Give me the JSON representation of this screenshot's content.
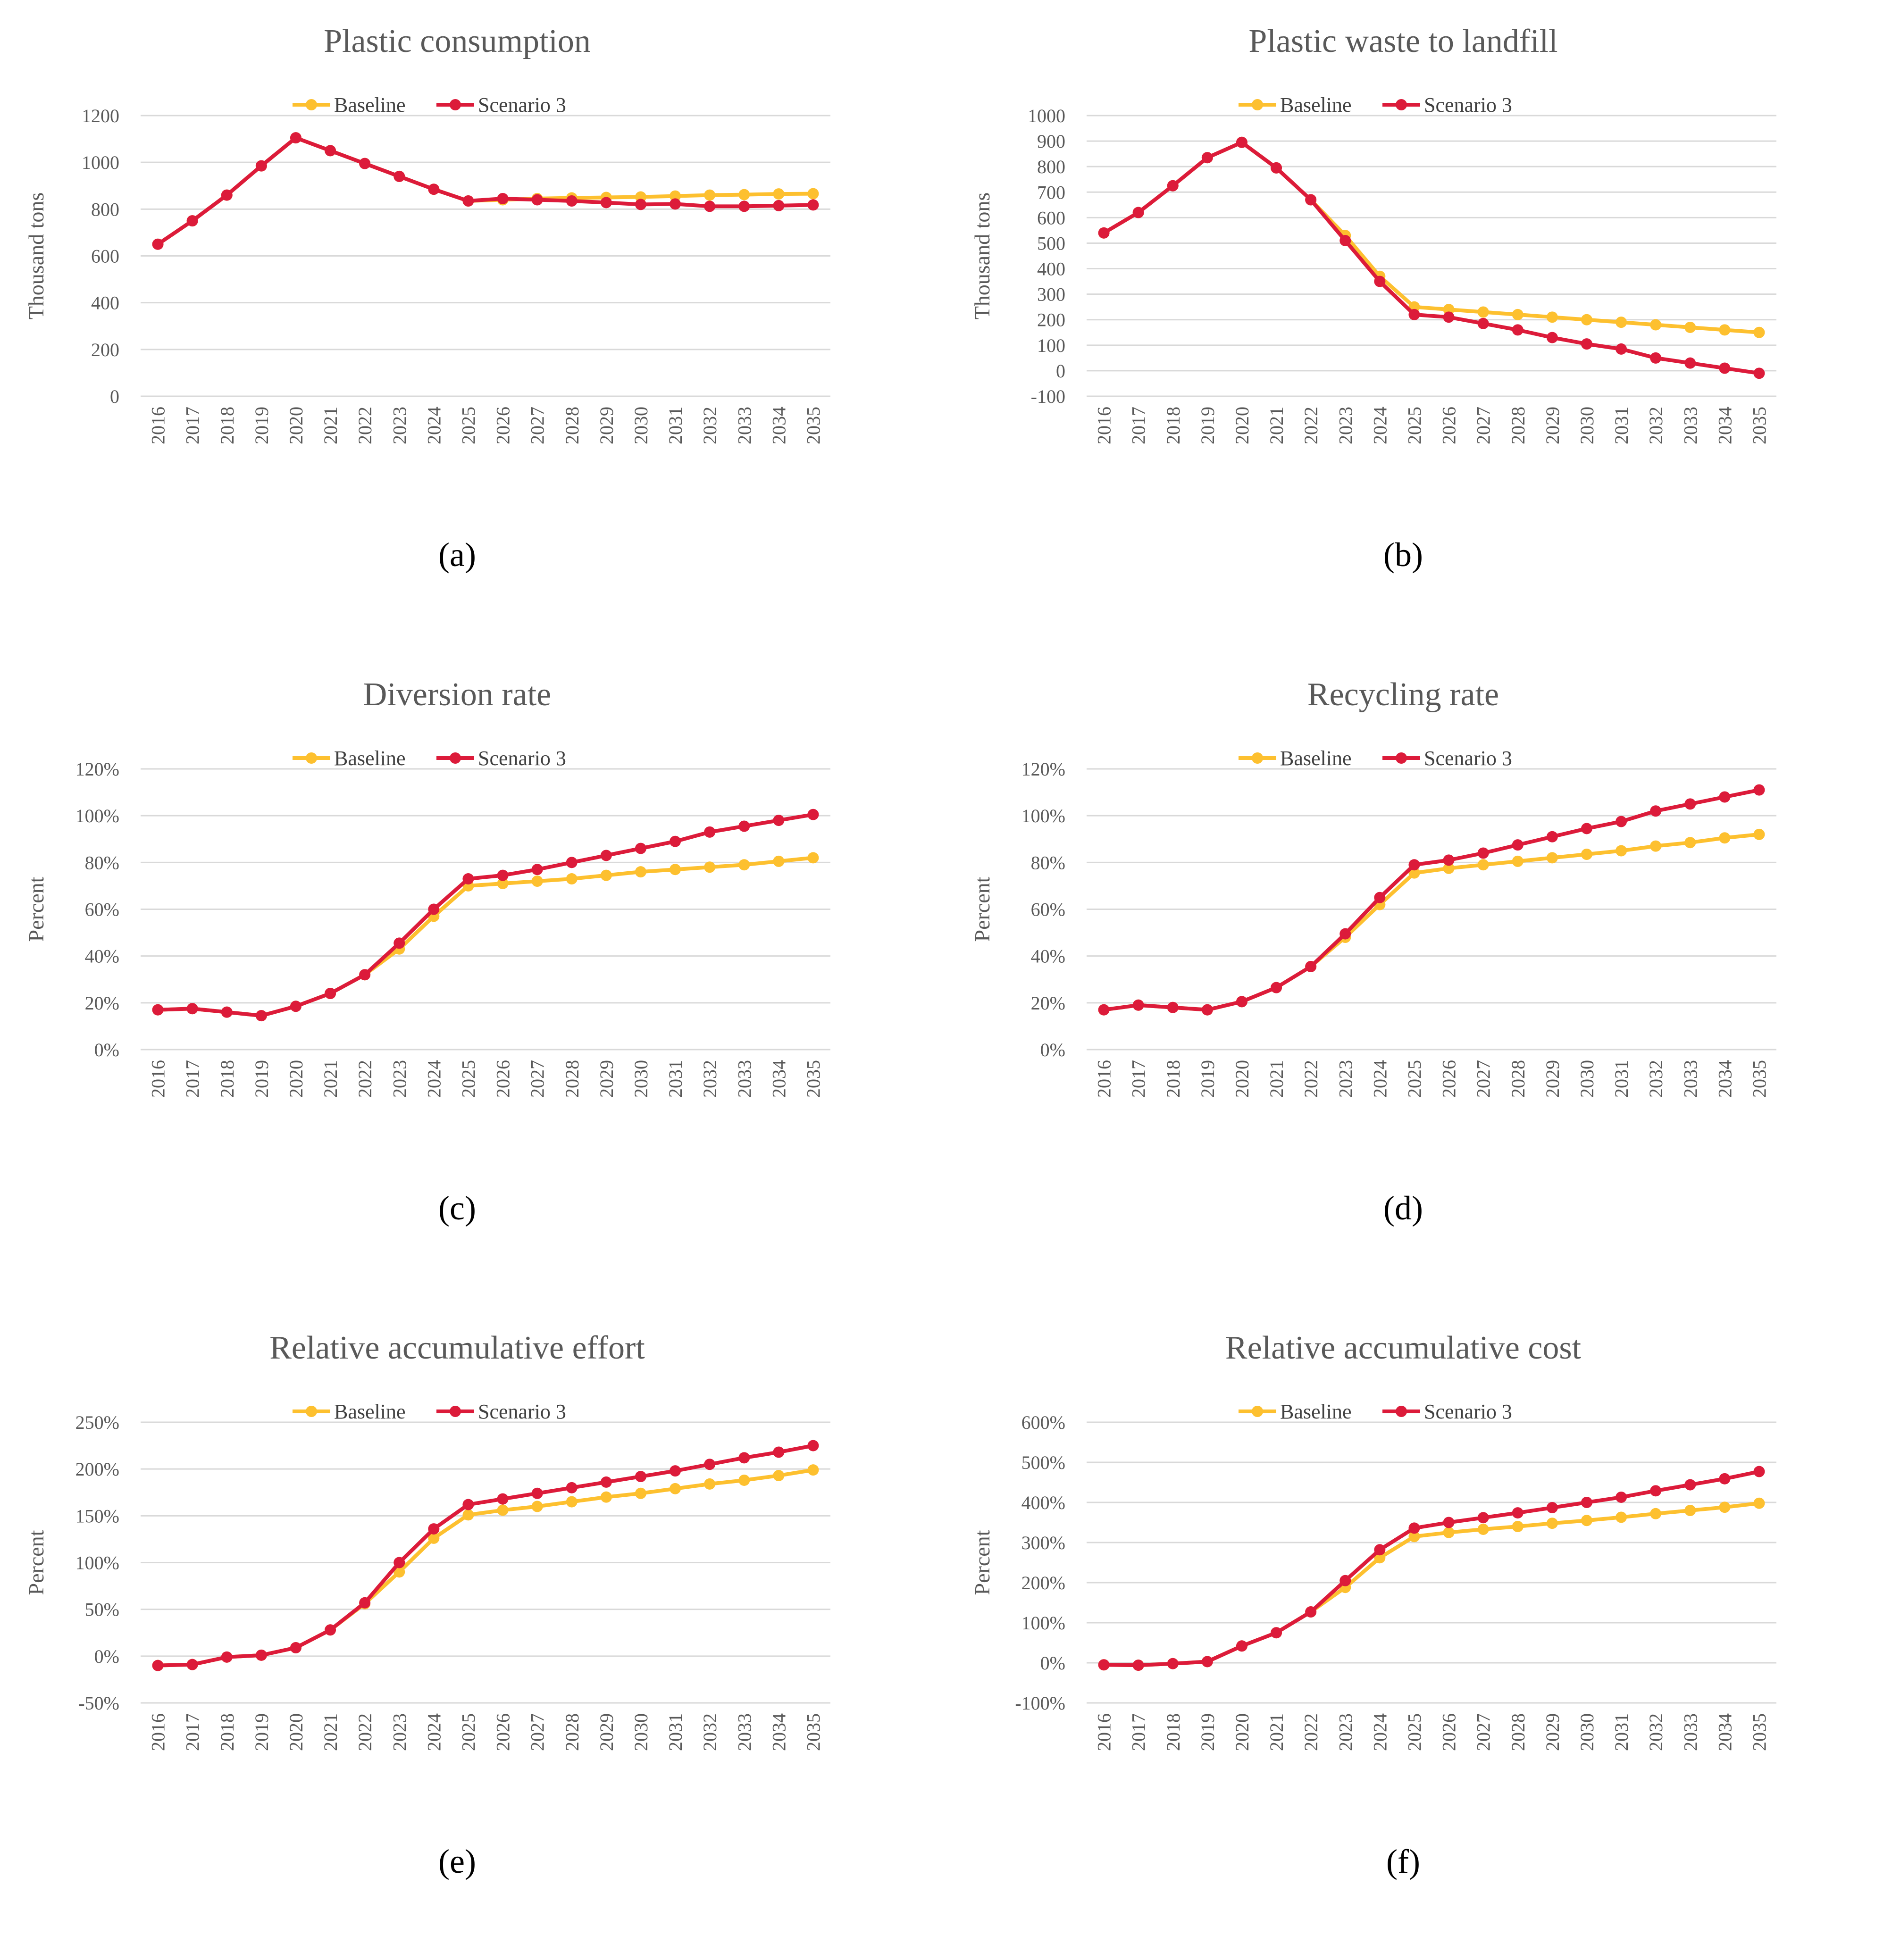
{
  "figure": {
    "colors": {
      "baseline": "#FDC02F",
      "scenario": "#DC1B3A",
      "grid": "#D9D9D9",
      "text": "#595959"
    }
  },
  "chart_data": [
    {
      "type": "line",
      "panel_label": "(a)",
      "title": "Plastic consumption",
      "xlabel": "",
      "ylabel": "Thousand tons",
      "categories": [
        "2016",
        "2017",
        "2018",
        "2019",
        "2020",
        "2021",
        "2022",
        "2023",
        "2024",
        "2025",
        "2026",
        "2027",
        "2028",
        "2029",
        "2030",
        "2031",
        "2032",
        "2033",
        "2034",
        "2035"
      ],
      "ylim": [
        0,
        1200
      ],
      "yticks": [
        0,
        200,
        400,
        600,
        800,
        1000,
        1200
      ],
      "ytick_labels": [
        "0",
        "200",
        "400",
        "600",
        "800",
        "1000",
        "1200"
      ],
      "legend": [
        "Baseline",
        "Scenario 3"
      ],
      "series": [
        {
          "name": "Baseline",
          "values": [
            650,
            750,
            860,
            985,
            1105,
            1050,
            995,
            940,
            885,
            835,
            840,
            845,
            848,
            850,
            852,
            856,
            860,
            862,
            865,
            866
          ]
        },
        {
          "name": "Scenario 3",
          "values": [
            650,
            750,
            860,
            985,
            1105,
            1050,
            995,
            940,
            885,
            835,
            845,
            840,
            835,
            828,
            820,
            822,
            812,
            812,
            815,
            818
          ]
        }
      ]
    },
    {
      "type": "line",
      "panel_label": "(b)",
      "title": "Plastic waste to landfill",
      "xlabel": "",
      "ylabel": "Thousand tons",
      "categories": [
        "2016",
        "2017",
        "2018",
        "2019",
        "2020",
        "2021",
        "2022",
        "2023",
        "2024",
        "2025",
        "2026",
        "2027",
        "2028",
        "2029",
        "2030",
        "2031",
        "2032",
        "2033",
        "2034",
        "2035"
      ],
      "ylim": [
        -100,
        1000
      ],
      "yticks": [
        -100,
        0,
        100,
        200,
        300,
        400,
        500,
        600,
        700,
        800,
        900,
        1000
      ],
      "ytick_labels": [
        "-100",
        "0",
        "100",
        "200",
        "300",
        "400",
        "500",
        "600",
        "700",
        "800",
        "900",
        "1000"
      ],
      "legend": [
        "Baseline",
        "Scenario 3"
      ],
      "series": [
        {
          "name": "Baseline",
          "values": [
            540,
            620,
            725,
            835,
            895,
            795,
            670,
            530,
            370,
            250,
            240,
            230,
            220,
            210,
            200,
            190,
            180,
            170,
            160,
            150
          ]
        },
        {
          "name": "Scenario 3",
          "values": [
            540,
            620,
            725,
            835,
            895,
            795,
            670,
            510,
            350,
            220,
            210,
            185,
            160,
            130,
            105,
            85,
            50,
            30,
            10,
            -10
          ]
        }
      ]
    },
    {
      "type": "line",
      "panel_label": "(c)",
      "title": "Diversion rate",
      "xlabel": "",
      "ylabel": "Percent",
      "categories": [
        "2016",
        "2017",
        "2018",
        "2019",
        "2020",
        "2021",
        "2022",
        "2023",
        "2024",
        "2025",
        "2026",
        "2027",
        "2028",
        "2029",
        "2030",
        "2031",
        "2032",
        "2033",
        "2034",
        "2035"
      ],
      "ylim": [
        0,
        120
      ],
      "yticks": [
        0,
        20,
        40,
        60,
        80,
        100,
        120
      ],
      "ytick_labels": [
        "0%",
        "20%",
        "40%",
        "60%",
        "80%",
        "100%",
        "120%"
      ],
      "legend": [
        "Baseline",
        "Scenario 3"
      ],
      "series": [
        {
          "name": "Baseline",
          "values": [
            17,
            17.5,
            16,
            14.5,
            18.5,
            24,
            32,
            43,
            57,
            70,
            71,
            72,
            73,
            74.5,
            76,
            77,
            78,
            79,
            80.5,
            82
          ]
        },
        {
          "name": "Scenario 3",
          "values": [
            17,
            17.5,
            16,
            14.5,
            18.5,
            24,
            32,
            45.5,
            60,
            73,
            74.5,
            77,
            80,
            83,
            86,
            89,
            93,
            95.5,
            98,
            100.5
          ]
        }
      ]
    },
    {
      "type": "line",
      "panel_label": "(d)",
      "title": "Recycling rate",
      "xlabel": "",
      "ylabel": "Percent",
      "categories": [
        "2016",
        "2017",
        "2018",
        "2019",
        "2020",
        "2021",
        "2022",
        "2023",
        "2024",
        "2025",
        "2026",
        "2027",
        "2028",
        "2029",
        "2030",
        "2031",
        "2032",
        "2033",
        "2034",
        "2035"
      ],
      "ylim": [
        0,
        120
      ],
      "yticks": [
        0,
        20,
        40,
        60,
        80,
        100,
        120
      ],
      "ytick_labels": [
        "0%",
        "20%",
        "40%",
        "60%",
        "80%",
        "100%",
        "120%"
      ],
      "legend": [
        "Baseline",
        "Scenario 3"
      ],
      "series": [
        {
          "name": "Baseline",
          "values": [
            17,
            19,
            18,
            17,
            20.5,
            26.5,
            35.5,
            48,
            62,
            75.5,
            77.5,
            79,
            80.5,
            82,
            83.5,
            85,
            87,
            88.5,
            90.5,
            92
          ]
        },
        {
          "name": "Scenario 3",
          "values": [
            17,
            19,
            18,
            17,
            20.5,
            26.5,
            35.5,
            49.5,
            65,
            79,
            81,
            84,
            87.5,
            91,
            94.5,
            97.5,
            102,
            105,
            108,
            111
          ]
        }
      ]
    },
    {
      "type": "line",
      "panel_label": "(e)",
      "title": "Relative accumulative effort",
      "xlabel": "",
      "ylabel": "Percent",
      "categories": [
        "2016",
        "2017",
        "2018",
        "2019",
        "2020",
        "2021",
        "2022",
        "2023",
        "2024",
        "2025",
        "2026",
        "2027",
        "2028",
        "2029",
        "2030",
        "2031",
        "2032",
        "2033",
        "2034",
        "2035"
      ],
      "ylim": [
        -50,
        250
      ],
      "yticks": [
        -50,
        0,
        50,
        100,
        150,
        200,
        250
      ],
      "ytick_labels": [
        "-50%",
        "0%",
        "50%",
        "100%",
        "150%",
        "200%",
        "250%"
      ],
      "legend": [
        "Baseline",
        "Scenario 3"
      ],
      "series": [
        {
          "name": "Baseline",
          "values": [
            -10,
            -9,
            -1,
            1,
            9,
            28,
            56,
            90,
            126,
            151,
            156,
            160,
            165,
            170,
            174,
            179,
            184,
            188,
            193,
            199
          ]
        },
        {
          "name": "Scenario 3",
          "values": [
            -10,
            -9,
            -1,
            1,
            9,
            28,
            57,
            100,
            136,
            162,
            168,
            174,
            180,
            186,
            192,
            198,
            205,
            212,
            218,
            225
          ]
        }
      ]
    },
    {
      "type": "line",
      "panel_label": "(f)",
      "title": "Relative accumulative cost",
      "xlabel": "",
      "ylabel": "Percent",
      "categories": [
        "2016",
        "2017",
        "2018",
        "2019",
        "2020",
        "2021",
        "2022",
        "2023",
        "2024",
        "2025",
        "2026",
        "2027",
        "2028",
        "2029",
        "2030",
        "2031",
        "2032",
        "2033",
        "2034",
        "2035"
      ],
      "ylim": [
        -100,
        600
      ],
      "yticks": [
        -100,
        0,
        100,
        200,
        300,
        400,
        500,
        600
      ],
      "ytick_labels": [
        "-100%",
        "0%",
        "100%",
        "200%",
        "300%",
        "400%",
        "500%",
        "600%"
      ],
      "legend": [
        "Baseline",
        "Scenario 3"
      ],
      "series": [
        {
          "name": "Baseline",
          "values": [
            -5,
            -6,
            -2,
            3,
            42,
            75,
            127,
            188,
            262,
            315,
            325,
            333,
            340,
            348,
            355,
            363,
            372,
            380,
            388,
            398
          ]
        },
        {
          "name": "Scenario 3",
          "values": [
            -5,
            -6,
            -2,
            3,
            42,
            75,
            127,
            205,
            282,
            336,
            350,
            362,
            374,
            387,
            400,
            413,
            429,
            444,
            459,
            477
          ]
        }
      ]
    }
  ]
}
